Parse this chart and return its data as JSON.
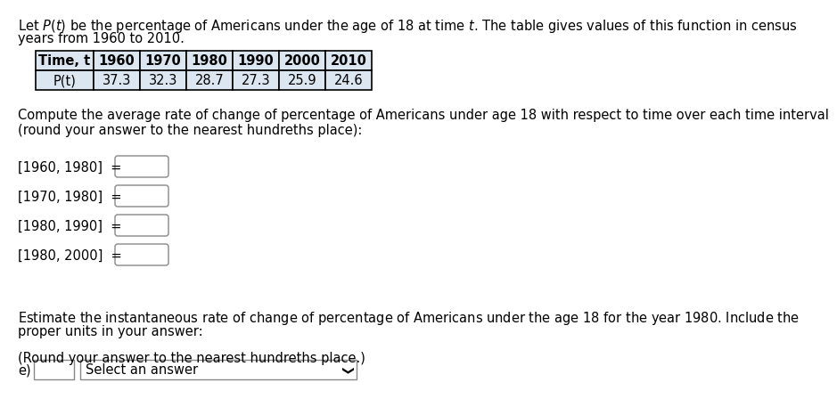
{
  "bg_color": "#ffffff",
  "text_color": "#000000",
  "intro_line1": "Let $P(t)$ be the percentage of Americans under the age of 18 at time $t$. The table gives values of this function in census",
  "intro_line2": "years from 1960 to 2010.",
  "table_headers": [
    "Time, t",
    "1960",
    "1970",
    "1980",
    "1990",
    "2000",
    "2010"
  ],
  "table_row_label": "P(t)",
  "table_values": [
    "37.3",
    "32.3",
    "28.7",
    "27.3",
    "25.9",
    "24.6"
  ],
  "table_header_bg": "#dce6f1",
  "table_value_bg": "#dce6f1",
  "compute_line1": "Compute the average rate of change of percentage of Americans under age 18 with respect to time over each time interval",
  "compute_line2": "(round your answer to the nearest hundreths place):",
  "intervals": [
    "[1960, 1980]",
    "[1970, 1980]",
    "[1980, 1990]",
    "[1980, 2000]"
  ],
  "estimate_line1": "Estimate the instantaneous rate of change of percentage of Americans under the age 18 for the year $1980$. Include the",
  "estimate_line2": "proper units in your answer:",
  "round_note": "(Round your answer to the nearest hundreths place.)",
  "e_label": "e)",
  "select_label": "Select an answer",
  "font_size": 10.5
}
